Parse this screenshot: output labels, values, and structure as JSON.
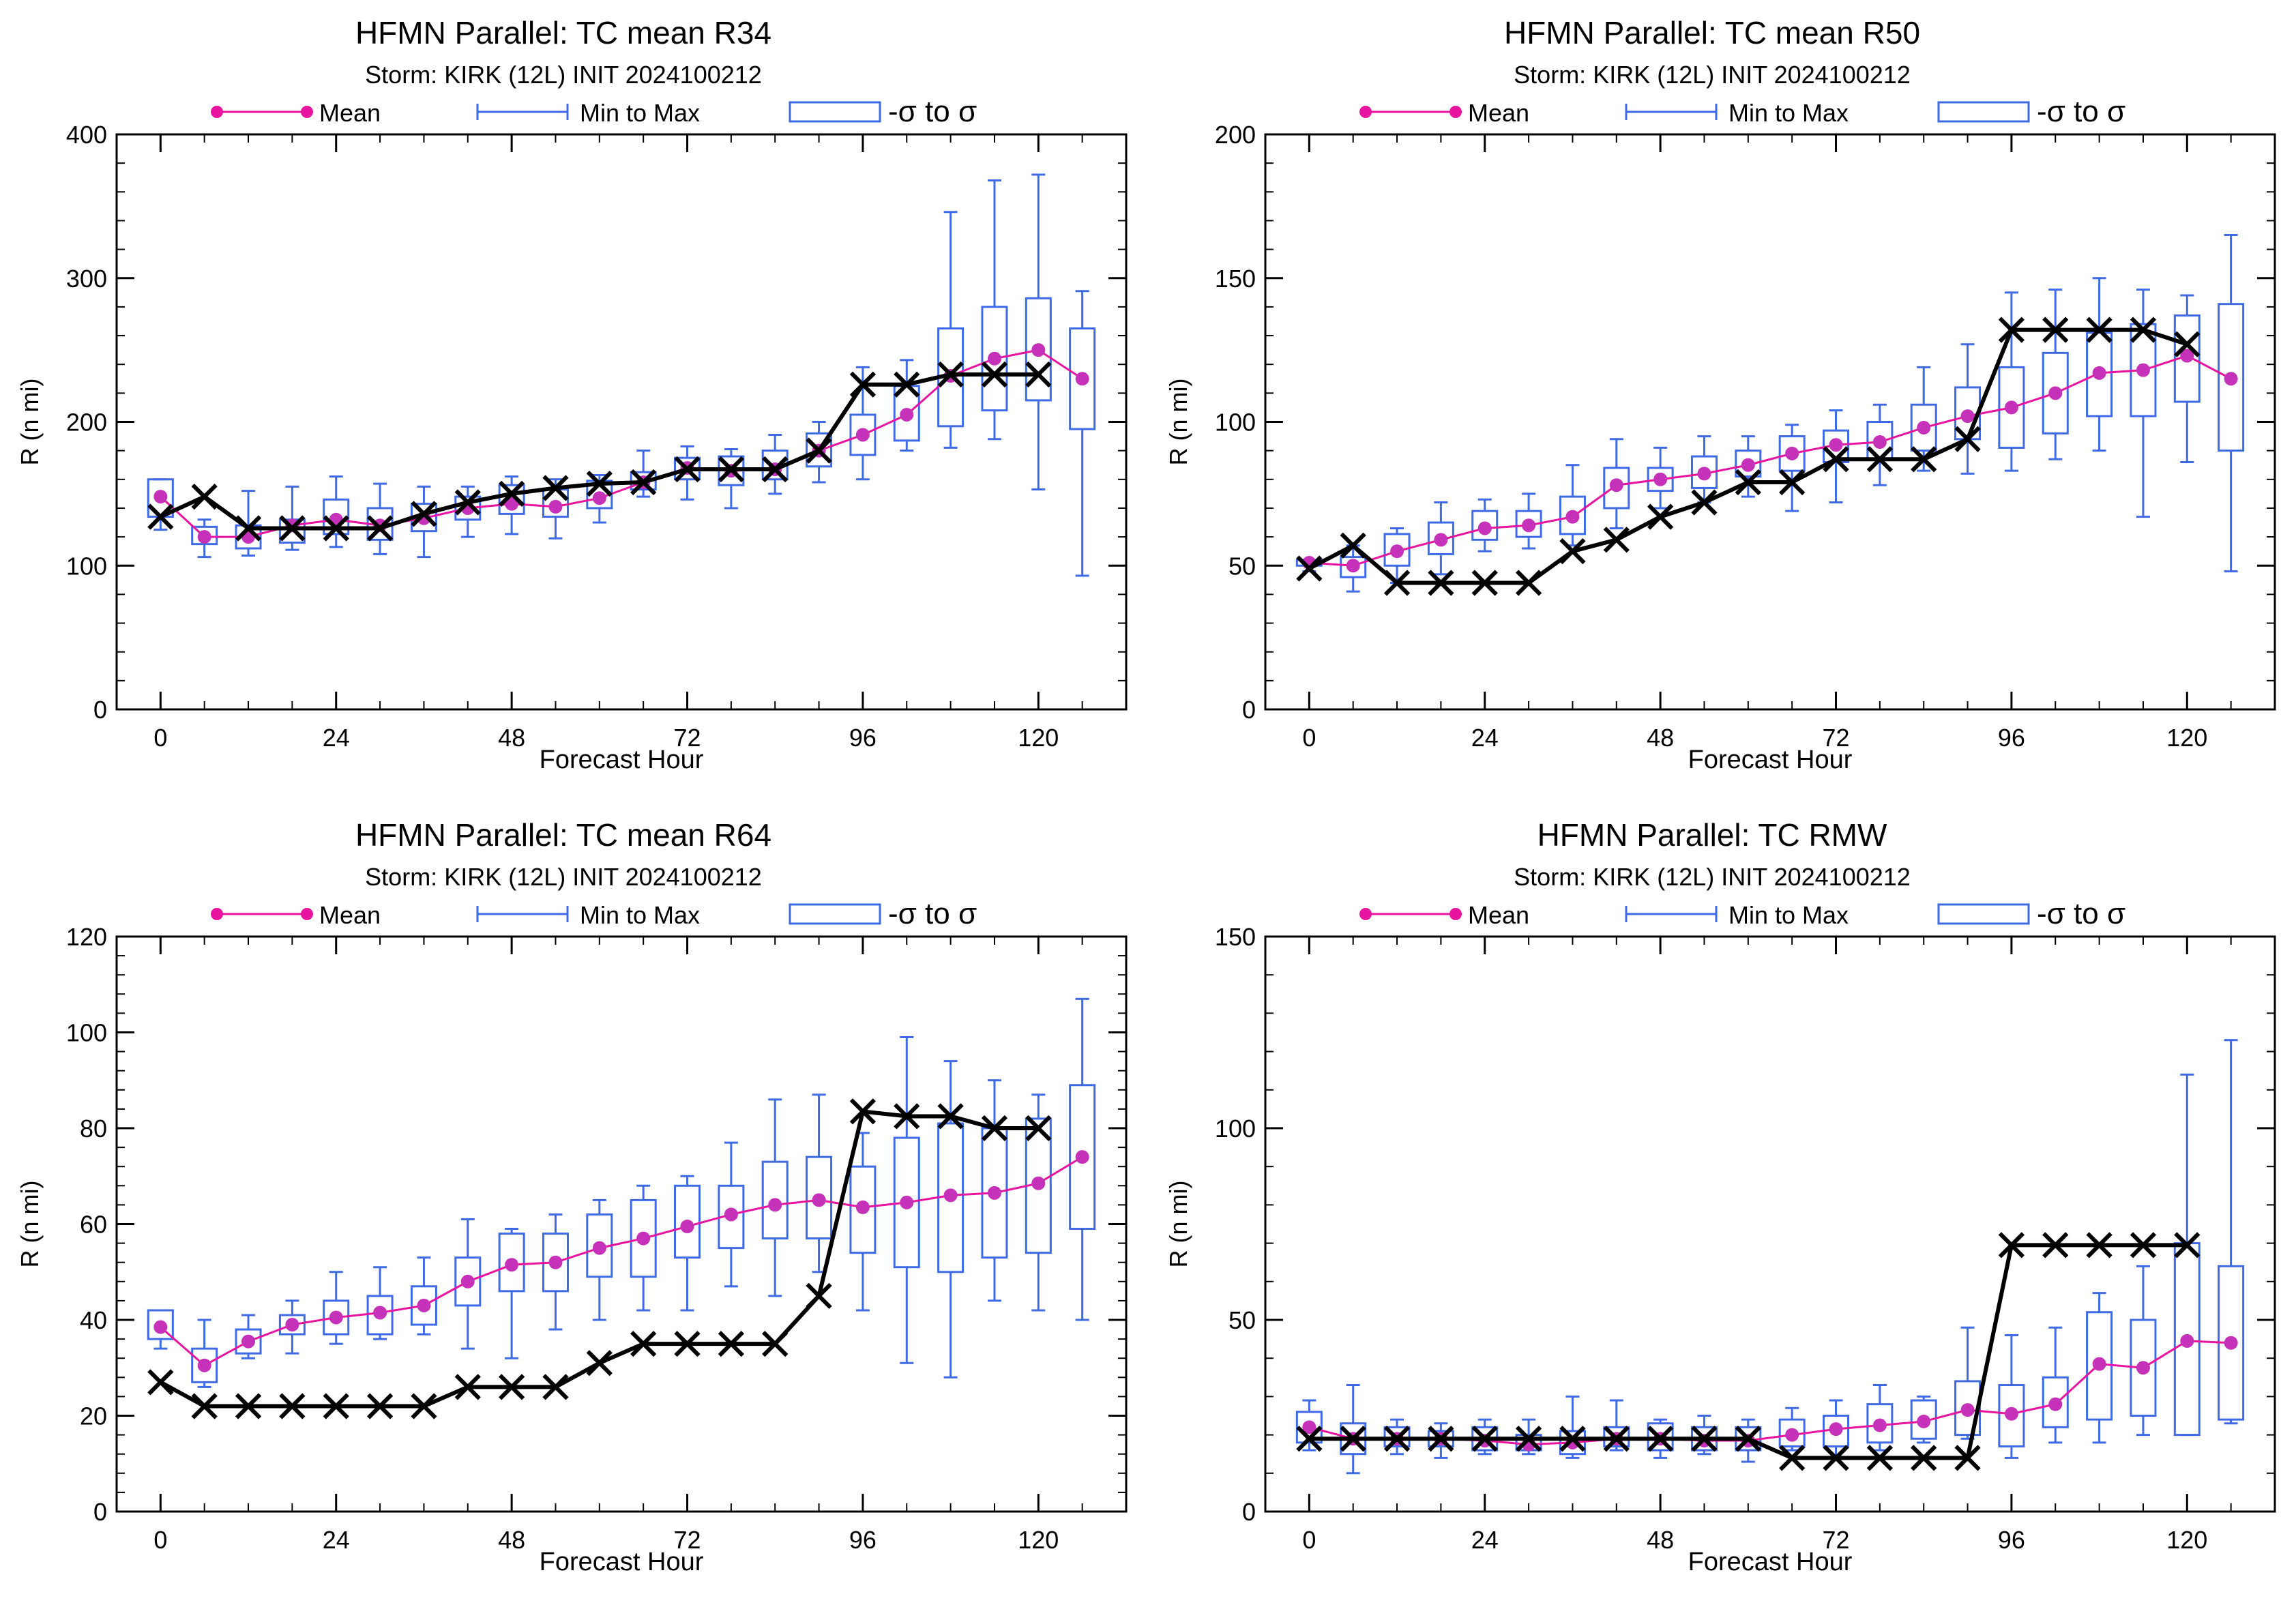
{
  "colors": {
    "mean": "#e8139f",
    "mean_marker": "#c531b8",
    "minmax": "#3f6ae6",
    "box": "#3f6ae6",
    "best_track": "#000000",
    "axis": "#000000"
  },
  "legend": {
    "mean_label": "Mean",
    "minmax_label": "Min to Max",
    "sigma_label": "-σ to σ"
  },
  "chart_data": [
    {
      "type": "line",
      "title": "HFMN Parallel: TC mean R34",
      "subtitle": "Storm: KIRK (12L) INIT 2024100212",
      "xlabel": "Forecast Hour",
      "ylabel": "R (n mi)",
      "xlim": [
        -6,
        132
      ],
      "ylim": [
        0,
        400
      ],
      "xticks": [
        "0",
        "24",
        "48",
        "72",
        "96",
        "120"
      ],
      "yticks": [
        "0",
        "100",
        "200",
        "300",
        "400"
      ],
      "grid": false,
      "legend_position": "top",
      "x": [
        0,
        6,
        12,
        18,
        24,
        30,
        36,
        42,
        48,
        54,
        60,
        66,
        72,
        78,
        84,
        90,
        96,
        102,
        108,
        114,
        120,
        126
      ],
      "mean": [
        148,
        120,
        120,
        128,
        132,
        128,
        133,
        140,
        143,
        141,
        147,
        158,
        168,
        166,
        167,
        180,
        191,
        205,
        232,
        244,
        250,
        230
      ],
      "min": [
        125,
        106,
        107,
        111,
        113,
        108,
        106,
        120,
        122,
        119,
        130,
        148,
        146,
        140,
        150,
        158,
        160,
        180,
        182,
        188,
        153,
        93
      ],
      "max": [
        160,
        132,
        152,
        155,
        162,
        157,
        155,
        155,
        162,
        160,
        163,
        180,
        183,
        181,
        191,
        200,
        238,
        243,
        346,
        368,
        372,
        291
      ],
      "sd_low": [
        134,
        115,
        112,
        116,
        122,
        118,
        124,
        132,
        136,
        134,
        140,
        153,
        160,
        156,
        160,
        169,
        177,
        187,
        197,
        208,
        215,
        195
      ],
      "sd_high": [
        160,
        127,
        128,
        132,
        146,
        140,
        143,
        148,
        156,
        153,
        159,
        165,
        175,
        176,
        180,
        192,
        205,
        225,
        265,
        280,
        286,
        265
      ],
      "best_track": [
        134,
        148,
        126,
        126,
        126,
        126,
        136,
        144,
        150,
        154,
        157,
        158,
        167,
        167,
        167,
        180,
        226,
        226,
        233,
        233,
        233
      ]
    },
    {
      "type": "line",
      "title": "HFMN Parallel: TC mean R50",
      "subtitle": "Storm: KIRK (12L) INIT 2024100212",
      "xlabel": "Forecast Hour",
      "ylabel": "R (n mi)",
      "xlim": [
        -6,
        132
      ],
      "ylim": [
        0,
        200
      ],
      "xticks": [
        "0",
        "24",
        "48",
        "72",
        "96",
        "120"
      ],
      "yticks": [
        "0",
        "50",
        "100",
        "150",
        "200"
      ],
      "grid": false,
      "legend_position": "top",
      "x": [
        0,
        6,
        12,
        18,
        24,
        30,
        36,
        42,
        48,
        54,
        60,
        66,
        72,
        78,
        84,
        90,
        96,
        102,
        108,
        114,
        120,
        126
      ],
      "mean": [
        51,
        50,
        55,
        59,
        63,
        64,
        67,
        78,
        80,
        82,
        85,
        89,
        92,
        93,
        98,
        102,
        105,
        110,
        117,
        118,
        123,
        115
      ],
      "min": [
        48,
        41,
        44,
        47,
        55,
        56,
        57,
        63,
        70,
        72,
        74,
        69,
        72,
        78,
        83,
        82,
        83,
        87,
        90,
        67,
        86,
        48
      ],
      "max": [
        52,
        57,
        63,
        72,
        73,
        75,
        85,
        94,
        91,
        95,
        95,
        99,
        104,
        106,
        119,
        127,
        145,
        146,
        150,
        146,
        144,
        165
      ],
      "sd_low": [
        50,
        46,
        50,
        54,
        59,
        60,
        61,
        70,
        76,
        77,
        81,
        83,
        86,
        87,
        90,
        94,
        91,
        96,
        102,
        102,
        107,
        90
      ],
      "sd_high": [
        52,
        53,
        61,
        65,
        69,
        69,
        74,
        84,
        84,
        88,
        90,
        95,
        97,
        100,
        106,
        112,
        119,
        124,
        131,
        134,
        137,
        141
      ],
      "best_track": [
        49,
        57,
        44,
        44,
        44,
        44,
        55,
        59,
        67,
        72,
        79,
        79,
        87,
        87,
        87,
        94,
        132,
        132,
        132,
        132,
        127
      ]
    },
    {
      "type": "line",
      "title": "HFMN Parallel: TC mean R64",
      "subtitle": "Storm: KIRK (12L) INIT 2024100212",
      "xlabel": "Forecast Hour",
      "ylabel": "R (n mi)",
      "xlim": [
        -6,
        132
      ],
      "ylim": [
        0,
        120
      ],
      "xticks": [
        "0",
        "24",
        "48",
        "72",
        "96",
        "120"
      ],
      "yticks": [
        "0",
        "20",
        "40",
        "60",
        "80",
        "100",
        "120"
      ],
      "grid": false,
      "legend_position": "top",
      "x": [
        0,
        6,
        12,
        18,
        24,
        30,
        36,
        42,
        48,
        54,
        60,
        66,
        72,
        78,
        84,
        90,
        96,
        102,
        108,
        114,
        120,
        126
      ],
      "mean": [
        38.5,
        30.5,
        35.5,
        39,
        40.5,
        41.5,
        43,
        48,
        51.5,
        52,
        55,
        57,
        59.5,
        62,
        64,
        65,
        63.5,
        64.5,
        66,
        66.5,
        68.5,
        74
      ],
      "min": [
        34,
        26,
        32,
        33,
        35,
        36,
        37,
        34,
        32,
        38,
        40,
        42,
        42,
        47,
        45,
        50,
        42,
        31,
        28,
        44,
        42,
        40
      ],
      "max": [
        42,
        40,
        41,
        44,
        50,
        51,
        53,
        61,
        59,
        62,
        65,
        68,
        70,
        77,
        86,
        87,
        79,
        99,
        94,
        90,
        87,
        107
      ],
      "sd_low": [
        36,
        27,
        33,
        37,
        37,
        37,
        39,
        43,
        46,
        46,
        49,
        49,
        53,
        55,
        57,
        57,
        54,
        51,
        50,
        53,
        54,
        59
      ],
      "sd_high": [
        42,
        34,
        38,
        41,
        44,
        45,
        47,
        53,
        58,
        58,
        62,
        65,
        68,
        68,
        73,
        74,
        72,
        78,
        81,
        80,
        82,
        89
      ],
      "best_track": [
        27,
        22,
        22,
        22,
        22,
        22,
        22,
        26,
        26,
        26,
        31,
        35,
        35,
        35,
        35,
        45,
        83.5,
        82.5,
        82.5,
        80,
        80
      ]
    },
    {
      "type": "line",
      "title": "HFMN Parallel: TC RMW",
      "subtitle": "Storm: KIRK (12L) INIT 2024100212",
      "xlabel": "Forecast Hour",
      "ylabel": "R (n mi)",
      "xlim": [
        -6,
        132
      ],
      "ylim": [
        0,
        150
      ],
      "xticks": [
        "0",
        "24",
        "48",
        "72",
        "96",
        "120"
      ],
      "yticks": [
        "0",
        "50",
        "100",
        "150"
      ],
      "grid": false,
      "legend_position": "top",
      "x": [
        0,
        6,
        12,
        18,
        24,
        30,
        36,
        42,
        48,
        54,
        60,
        66,
        72,
        78,
        84,
        90,
        96,
        102,
        108,
        114,
        120,
        126
      ],
      "mean": [
        22,
        19,
        19,
        19,
        18.5,
        17.5,
        18,
        19,
        19,
        18.5,
        18.5,
        20,
        21.5,
        22.5,
        23.5,
        26.5,
        25.5,
        28,
        38.5,
        37.5,
        44.5,
        44
      ],
      "min": [
        16,
        10,
        15,
        14,
        15,
        15,
        14,
        16,
        14,
        15,
        13,
        16,
        14,
        16,
        18,
        19,
        14,
        18,
        18,
        20,
        20,
        23
      ],
      "max": [
        29,
        33,
        24,
        23,
        24,
        24,
        30,
        29,
        24,
        25,
        24,
        27,
        29,
        33,
        30,
        48,
        46,
        48,
        57,
        64,
        114,
        123
      ],
      "sd_low": [
        18,
        15,
        17,
        17,
        16,
        16,
        15,
        17,
        16,
        16,
        16,
        17,
        17,
        18,
        19,
        20,
        17,
        22,
        24,
        25,
        20,
        24
      ],
      "sd_high": [
        26,
        23,
        22,
        21,
        22,
        20,
        21,
        22,
        23,
        22,
        22,
        24,
        25,
        28,
        29,
        34,
        33,
        35,
        52,
        50,
        70,
        64
      ],
      "best_track": [
        19,
        19,
        19,
        19,
        19,
        19,
        19,
        19,
        19,
        19,
        19,
        14,
        14,
        14,
        14,
        14,
        69.5,
        69.5,
        69.5,
        69.5,
        69.5
      ]
    }
  ]
}
